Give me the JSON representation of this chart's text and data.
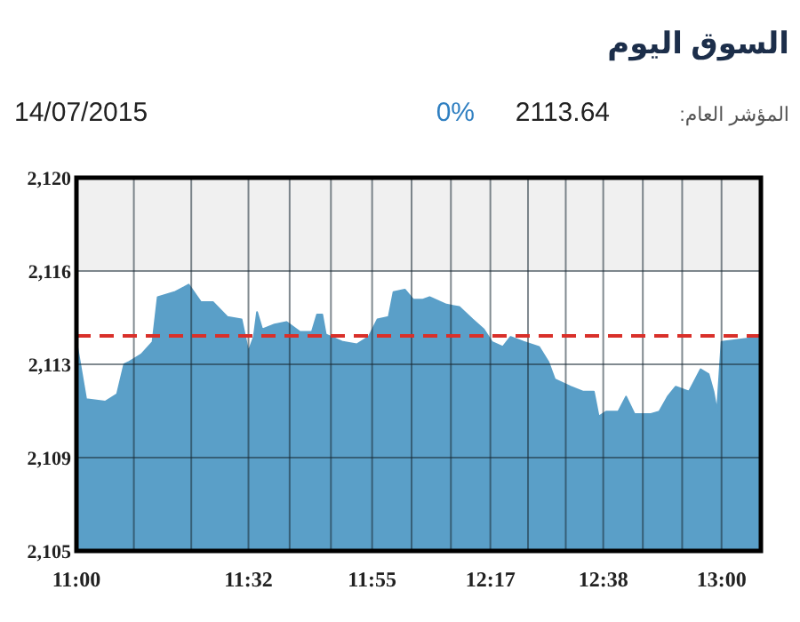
{
  "chart_data": {
    "type": "area",
    "title": "السوق اليوم",
    "annotations": [
      "المؤشر العام:",
      "2113.64",
      "0%",
      "14/07/2015"
    ],
    "series": [
      {
        "color": "#5a9fc8",
        "x": [
          11.0,
          11.03,
          11.089,
          11.126,
          11.148,
          11.164,
          11.201,
          11.236,
          11.252,
          11.304,
          11.334,
          11.348,
          11.386,
          11.423,
          11.468,
          11.512,
          11.533,
          11.55,
          11.56,
          11.576,
          11.614,
          11.651,
          11.693,
          11.73,
          11.746,
          11.762,
          11.773,
          11.826,
          11.869,
          11.906,
          11.933,
          11.968,
          11.983,
          12.018,
          12.044,
          12.074,
          12.095,
          12.147,
          12.187,
          12.228,
          12.263,
          12.288,
          12.322,
          12.346,
          12.386,
          12.434,
          12.463,
          12.483,
          12.532,
          12.57,
          12.604,
          12.619,
          12.643,
          12.68,
          12.704,
          12.73,
          12.781,
          12.807,
          12.833,
          12.858,
          12.899,
          12.935,
          12.96,
          12.975,
          12.986,
          13.0,
          13.122
        ],
        "values": [
          2113.4,
          2111.1,
          2111.0,
          2111.3,
          2112.5,
          2112.6,
          2112.9,
          2113.4,
          2115.2,
          2115.4,
          2115.6,
          2115.7,
          2115.0,
          2115.0,
          2114.4,
          2114.3,
          2113.0,
          2113.6,
          2114.6,
          2113.9,
          2114.1,
          2114.2,
          2113.8,
          2113.8,
          2114.5,
          2114.5,
          2113.7,
          2113.4,
          2113.3,
          2113.6,
          2114.3,
          2114.4,
          2115.4,
          2115.5,
          2115.1,
          2115.1,
          2115.2,
          2114.9,
          2114.8,
          2114.3,
          2113.9,
          2113.4,
          2113.2,
          2113.6,
          2113.4,
          2113.2,
          2112.6,
          2111.9,
          2111.6,
          2111.4,
          2111.4,
          2110.4,
          2110.6,
          2110.6,
          2111.2,
          2110.5,
          2110.5,
          2110.6,
          2111.2,
          2111.6,
          2111.4,
          2112.3,
          2112.1,
          2111.4,
          2110.6,
          2113.4,
          2113.6
        ]
      }
    ],
    "xlim": [
      11.0,
      13.122
    ],
    "xticks": [
      {
        "value": 11.0,
        "label": "11:00"
      },
      {
        "value": 11.178,
        "label": null
      },
      {
        "value": 11.356,
        "label": null
      },
      {
        "value": 11.5333,
        "label": "11:32"
      },
      {
        "value": 11.661,
        "label": null
      },
      {
        "value": 11.789,
        "label": null
      },
      {
        "value": 11.9167,
        "label": "11:55"
      },
      {
        "value": 12.039,
        "label": null
      },
      {
        "value": 12.161,
        "label": null
      },
      {
        "value": 12.2833,
        "label": "12:17"
      },
      {
        "value": 12.4,
        "label": null
      },
      {
        "value": 12.517,
        "label": null
      },
      {
        "value": 12.6333,
        "label": "12:38"
      },
      {
        "value": 12.756,
        "label": null
      },
      {
        "value": 12.878,
        "label": null
      },
      {
        "value": 13.0,
        "label": "13:00"
      },
      {
        "value": 13.122,
        "label": null
      }
    ],
    "ylim": [
      2105,
      2120
    ],
    "yticks": [
      {
        "value": 2105,
        "label": "2,105"
      },
      {
        "value": 2108.75,
        "label": "2,109"
      },
      {
        "value": 2112.5,
        "label": "2,113"
      },
      {
        "value": 2116.25,
        "label": "2,116"
      },
      {
        "value": 2120,
        "label": "2,120"
      }
    ],
    "grid": true,
    "ref_lines": [
      {
        "axis": "y",
        "value": 2113.64,
        "color": "#d9302a",
        "line_style": "dashed"
      }
    ],
    "bands": [
      {
        "axis": "y",
        "from": 2116.25,
        "to": 2120,
        "color": "#f0f0f0"
      }
    ]
  }
}
